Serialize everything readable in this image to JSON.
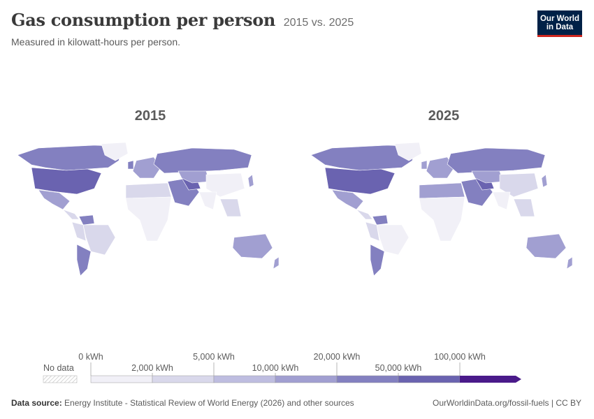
{
  "header": {
    "title": "Gas consumption per person",
    "title_suffix": "2015 vs. 2025",
    "subtitle": "Measured in kilowatt-hours per person."
  },
  "logo": {
    "line1": "Our World",
    "line2": "in Data"
  },
  "maps": [
    {
      "year": "2015"
    },
    {
      "year": "2025"
    }
  ],
  "legend": {
    "no_data_label": "No data",
    "upper_labels": [
      "0 kWh",
      "5,000 kWh",
      "20,000 kWh",
      "100,000 kWh"
    ],
    "lower_labels": [
      "2,000 kWh",
      "10,000 kWh",
      "50,000 kWh"
    ],
    "colors": [
      "#f1f0f7",
      "#d9d8eb",
      "#bebde0",
      "#a19fd1",
      "#8380c0",
      "#6a63b0",
      "#4a1a8a"
    ]
  },
  "footer": {
    "source_label": "Data source:",
    "source_text": "Energy Institute - Statistical Review of World Energy (2026) and other sources",
    "url_text": "OurWorldinData.org/fossil-fuels | CC BY"
  }
}
